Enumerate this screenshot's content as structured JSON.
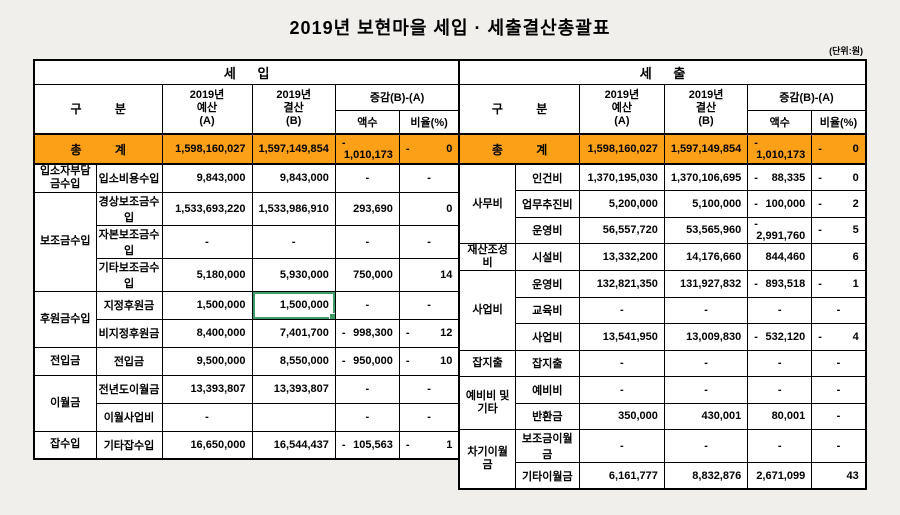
{
  "title": "2019년 보현마을 세입 · 세출결산총괄표",
  "unit_label": "(단위:원)",
  "colors": {
    "total_row_bg": "#fca017",
    "selection_border": "#3f9e68",
    "grid": "#000000"
  },
  "header": {
    "category": "구          분",
    "budget": "2019년\n예산\n(A)",
    "actual": "2019년\n결산\n(B)",
    "diff": "증감(B)-(A)",
    "amount": "액수",
    "ratio": "비율(%)"
  },
  "revenue": {
    "section_title": "세      입",
    "total": {
      "label": "총          계",
      "budget": "1,598,160,027",
      "actual": "1,597,149,854",
      "diff": "-1,010,173",
      "ratio": "-0"
    },
    "groups": [
      {
        "name": "입소자부담\n금수입",
        "rows": [
          {
            "label": "입소비용수입",
            "budget": "9,843,000",
            "actual": "9,843,000",
            "diff": "-",
            "ratio": "-"
          }
        ]
      },
      {
        "name": "보조금수입",
        "rows": [
          {
            "label": "경상보조금수입",
            "budget": "1,533,693,220",
            "actual": "1,533,986,910",
            "diff": "293,690",
            "ratio": "0"
          },
          {
            "label": "자본보조금수입",
            "budget": "-",
            "actual": "-",
            "diff": "-",
            "ratio": "-"
          },
          {
            "label": "기타보조금수입",
            "budget": "5,180,000",
            "actual": "5,930,000",
            "diff": "750,000",
            "ratio": "14"
          }
        ]
      },
      {
        "name": "후원금수입",
        "rows": [
          {
            "label": "지정후원금",
            "budget": "1,500,000",
            "actual": "1,500,000",
            "selected": "actual",
            "diff": "-",
            "ratio": "-"
          },
          {
            "label": "비지정후원금",
            "budget": "8,400,000",
            "actual": "7,401,700",
            "diff": "-998,300",
            "ratio": "-12"
          }
        ]
      },
      {
        "name": "전입금",
        "rows": [
          {
            "label": "전입금",
            "budget": "9,500,000",
            "actual": "8,550,000",
            "diff": "-950,000",
            "ratio": "-10"
          }
        ]
      },
      {
        "name": "이월금",
        "rows": [
          {
            "label": "전년도이월금",
            "budget": "13,393,807",
            "actual": "13,393,807",
            "diff": "-",
            "ratio": "-"
          },
          {
            "label": "이월사업비",
            "budget": "-",
            "actual": "",
            "diff": "-",
            "ratio": "-"
          }
        ]
      },
      {
        "name": "잡수입",
        "rows": [
          {
            "label": "기타잡수입",
            "budget": "16,650,000",
            "actual": "16,544,437",
            "diff": "-105,563",
            "ratio": "-1"
          }
        ]
      }
    ]
  },
  "expenditure": {
    "section_title": "세      출",
    "total": {
      "label": "총          계",
      "budget": "1,598,160,027",
      "actual": "1,597,149,854",
      "diff": "-1,010,173",
      "ratio": "-0"
    },
    "groups": [
      {
        "name": "사무비",
        "rows": [
          {
            "label": "인건비",
            "budget": "1,370,195,030",
            "actual": "1,370,106,695",
            "diff": "-88,335",
            "ratio": "-0"
          },
          {
            "label": "업무추진비",
            "budget": "5,200,000",
            "actual": "5,100,000",
            "diff": "-100,000",
            "ratio": "-2"
          },
          {
            "label": "운영비",
            "budget": "56,557,720",
            "actual": "53,565,960",
            "diff": "-2,991,760",
            "ratio": "-5"
          }
        ]
      },
      {
        "name": "재산조성비",
        "rows": [
          {
            "label": "시설비",
            "budget": "13,332,200",
            "actual": "14,176,660",
            "diff": "844,460",
            "ratio": "6"
          }
        ]
      },
      {
        "name": "사업비",
        "rows": [
          {
            "label": "운영비",
            "budget": "132,821,350",
            "actual": "131,927,832",
            "diff": "-893,518",
            "ratio": "-1"
          },
          {
            "label": "교육비",
            "budget": "-",
            "actual": "-",
            "diff": "-",
            "ratio": "-"
          },
          {
            "label": "사업비",
            "budget": "13,541,950",
            "actual": "13,009,830",
            "diff": "-532,120",
            "ratio": "-4"
          }
        ]
      },
      {
        "name": "잡지출",
        "rows": [
          {
            "label": "잡지출",
            "budget": "-",
            "actual": "-",
            "diff": "-",
            "ratio": "-"
          }
        ]
      },
      {
        "name": "예비비 및\n기타",
        "rows": [
          {
            "label": "예비비",
            "budget": "-",
            "actual": "-",
            "diff": "-",
            "ratio": "-"
          },
          {
            "label": "반환금",
            "budget": "350,000",
            "actual": "430,001",
            "diff": "80,001",
            "ratio": "-"
          }
        ]
      },
      {
        "name": "차기이월금",
        "rows": [
          {
            "label": "보조금이월금",
            "budget": "-",
            "actual": "-",
            "diff": "-",
            "ratio": "-"
          },
          {
            "label": "기타이월금",
            "budget": "6,161,777",
            "actual": "8,832,876",
            "diff": "2,671,099",
            "ratio": "43"
          }
        ]
      }
    ]
  }
}
